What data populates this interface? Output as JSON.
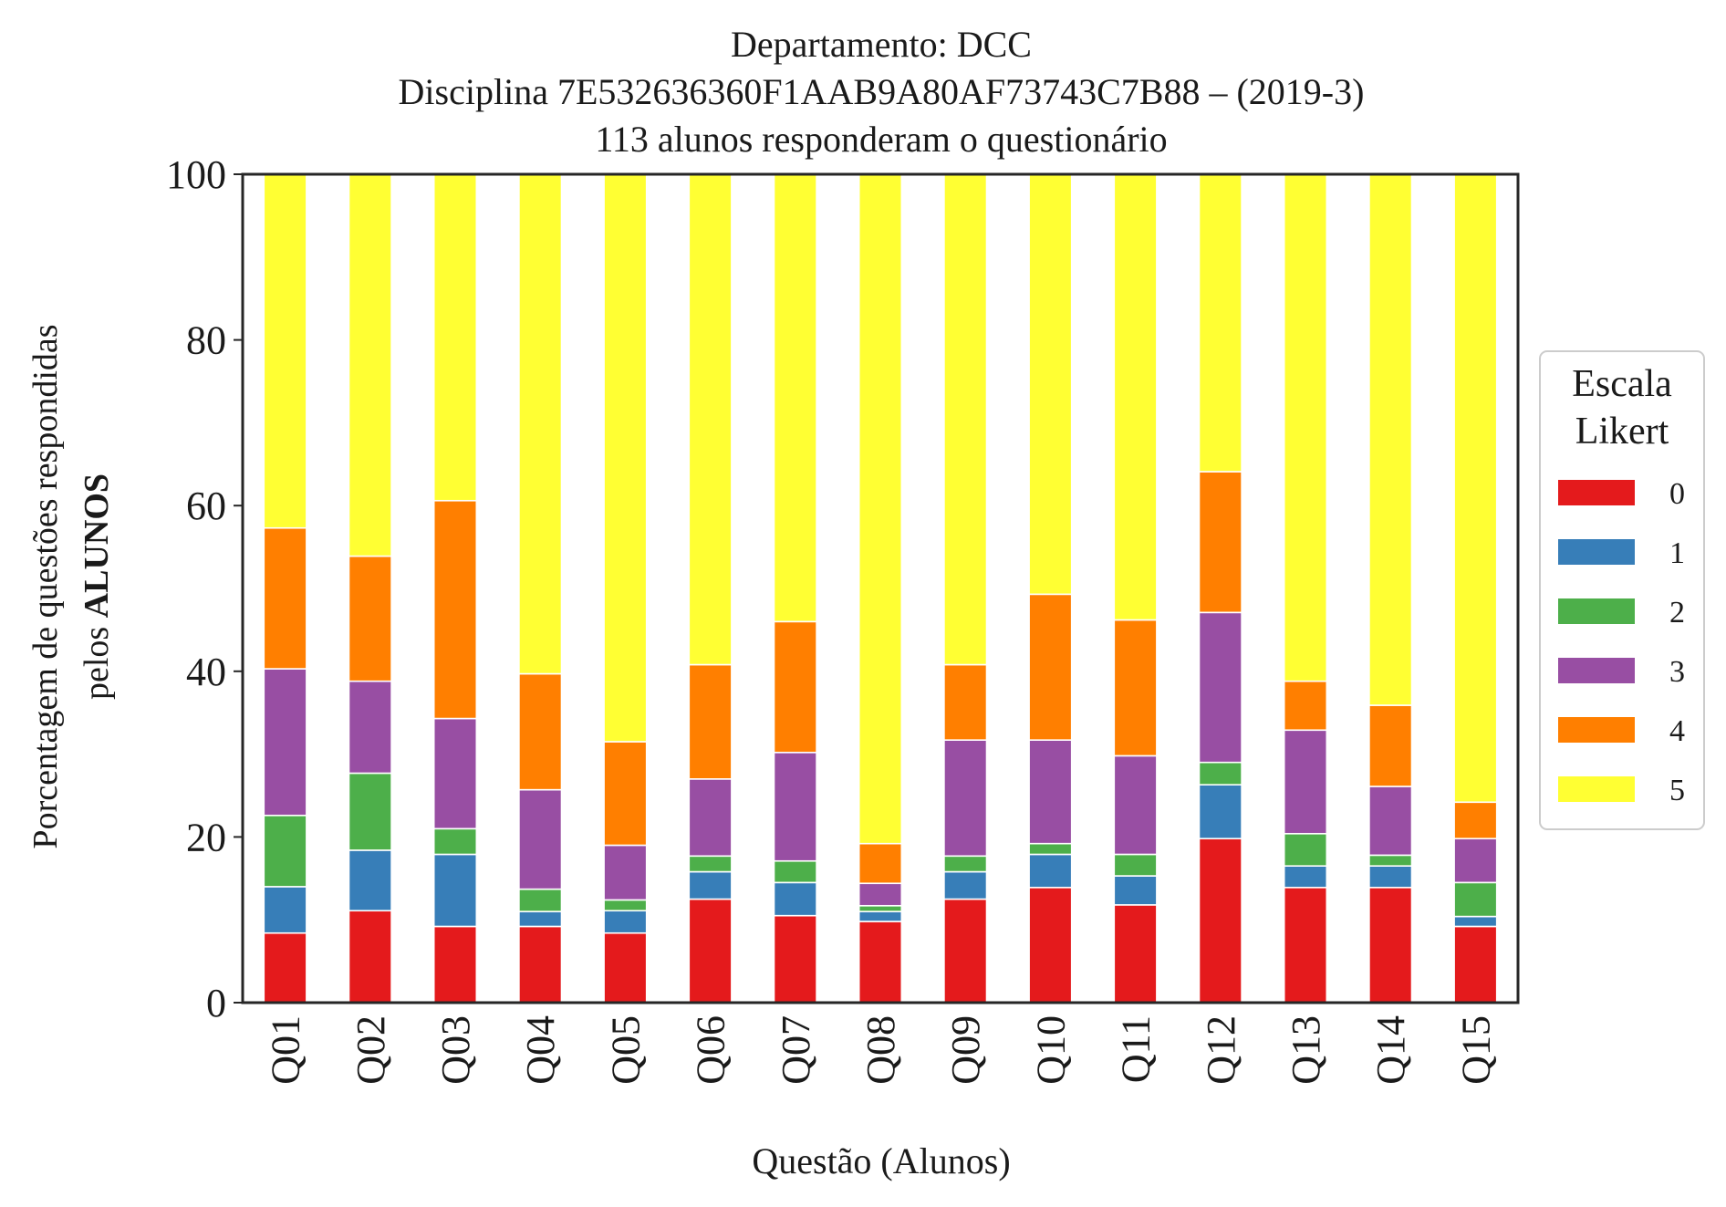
{
  "chart_data": {
    "type": "bar",
    "stacked": true,
    "title_lines": [
      "Departamento: DCC",
      "Disciplina 7E532636360F1AAB9A80AF73743C7B88 – (2019-3)",
      "113 alunos responderam o questionário"
    ],
    "xlabel": "Questão (Alunos)",
    "ylabel_line1": "Porcentagem de questões respondidas",
    "ylabel_line2_prefix": "pelos ",
    "ylabel_line2_bold": "ALUNOS",
    "ylim": [
      0,
      100
    ],
    "yticks": [
      "0",
      "20",
      "40",
      "60",
      "80",
      "100"
    ],
    "grid": false,
    "legend": {
      "title_line1": "Escala",
      "title_line2": "Likert",
      "placement": "right"
    },
    "categories": [
      "Q01",
      "Q02",
      "Q03",
      "Q04",
      "Q05",
      "Q06",
      "Q07",
      "Q08",
      "Q09",
      "Q10",
      "Q11",
      "Q12",
      "Q13",
      "Q14",
      "Q15"
    ],
    "series": [
      {
        "name": "0",
        "color": "#e41a1c",
        "values": [
          8.4,
          11.1,
          9.2,
          9.2,
          8.4,
          12.5,
          10.5,
          9.8,
          12.5,
          13.9,
          11.8,
          19.8,
          13.9,
          13.9,
          9.2
        ]
      },
      {
        "name": "1",
        "color": "#377eb8",
        "values": [
          5.6,
          7.3,
          8.7,
          1.8,
          2.7,
          3.3,
          4.0,
          1.2,
          3.3,
          4.0,
          3.5,
          6.5,
          2.6,
          2.6,
          1.2
        ]
      },
      {
        "name": "2",
        "color": "#4daf4a",
        "values": [
          8.6,
          9.3,
          3.1,
          2.7,
          1.3,
          1.9,
          2.6,
          0.7,
          1.9,
          1.3,
          2.6,
          2.7,
          3.9,
          1.3,
          4.1
        ]
      },
      {
        "name": "3",
        "color": "#984ea3",
        "values": [
          17.7,
          11.1,
          13.3,
          12.0,
          6.6,
          9.3,
          13.1,
          2.7,
          14.0,
          12.5,
          11.9,
          18.1,
          12.5,
          8.3,
          5.3
        ]
      },
      {
        "name": "4",
        "color": "#ff7f00",
        "values": [
          17.0,
          15.1,
          26.3,
          14.0,
          12.5,
          13.8,
          15.8,
          4.8,
          9.1,
          17.6,
          16.4,
          17.0,
          5.9,
          9.8,
          4.4
        ]
      },
      {
        "name": "5",
        "color": "#ffff33",
        "values": [
          42.7,
          46.1,
          39.4,
          60.3,
          68.5,
          59.2,
          54.0,
          80.8,
          59.2,
          50.7,
          53.8,
          35.9,
          61.2,
          64.1,
          75.8
        ]
      }
    ]
  }
}
